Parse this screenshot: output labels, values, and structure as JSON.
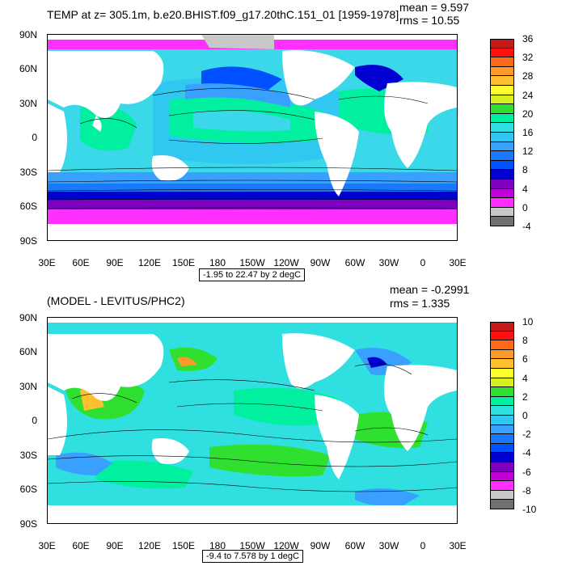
{
  "panel1": {
    "title": "TEMP at z= 305.1m, b.e20.BHIST.f09_g17.20thC.151_01 [1959-1978]",
    "mean": "mean = 9.597",
    "rms": "rms = 10.55",
    "subtitle": "-1.95 to 22.47 by 2 degC",
    "colorbar_labels": [
      "36",
      "32",
      "28",
      "24",
      "20",
      "16",
      "12",
      "8",
      "4",
      "0",
      "-4"
    ],
    "colorbar_colors": [
      "#c41a1a",
      "#ff1010",
      "#ff6a1a",
      "#ff9a2a",
      "#ffc030",
      "#ffff30",
      "#d8f020",
      "#30e030",
      "#00f0a0",
      "#30e0e0",
      "#30c8f0",
      "#3aa0ff",
      "#1a78ff",
      "#0050ff",
      "#0000d0",
      "#8000c0",
      "#c000d8",
      "#ff30ff",
      "#c8c8c8",
      "#707070"
    ]
  },
  "panel2": {
    "title": "(MODEL - LEVITUS/PHC2)",
    "mean": "mean = -0.2991",
    "rms": "rms = 1.335",
    "subtitle": "-9.4 to 7.578 by 1 degC",
    "colorbar_labels": [
      "10",
      "8",
      "6",
      "4",
      "2",
      "0",
      "-2",
      "-4",
      "-6",
      "-8",
      "-10"
    ],
    "colorbar_colors": [
      "#c41a1a",
      "#ff1010",
      "#ff6a1a",
      "#ff9a2a",
      "#ffc030",
      "#ffff30",
      "#d8f020",
      "#30e030",
      "#00f0a0",
      "#30e0e0",
      "#30c8f0",
      "#3aa0ff",
      "#1a78ff",
      "#0050ff",
      "#0000d0",
      "#8000c0",
      "#c000d8",
      "#ff30ff",
      "#c8c8c8",
      "#707070"
    ]
  },
  "lat_labels": [
    "90N",
    "60N",
    "30N",
    "0",
    "30S",
    "60S",
    "90S"
  ],
  "lon_labels": [
    "30E",
    "60E",
    "90E",
    "120E",
    "150E",
    "180",
    "150W",
    "120W",
    "90W",
    "60W",
    "30W",
    "0",
    "30E"
  ]
}
